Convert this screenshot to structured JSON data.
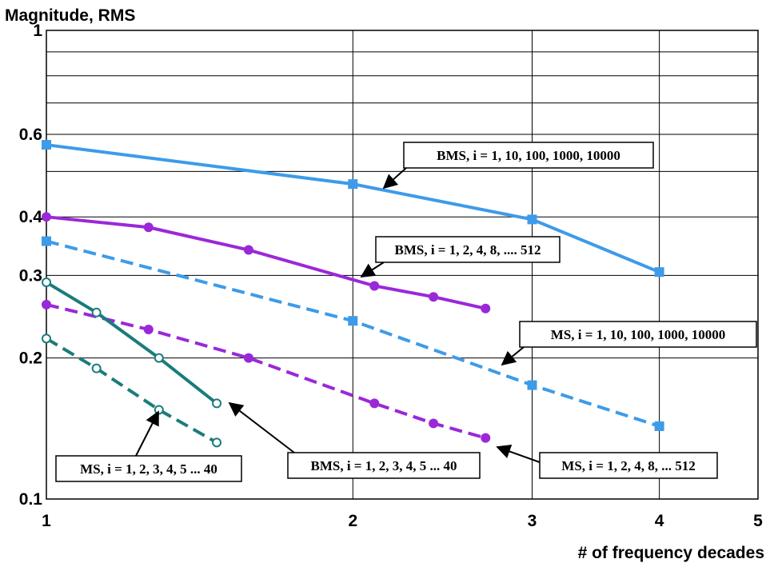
{
  "chart_data": {
    "type": "line",
    "title": "",
    "xlabel": "# of frequency decades",
    "ylabel": "Magnitude, RMS",
    "xscale": "log",
    "yscale": "log",
    "xlim": [
      1,
      5
    ],
    "ylim": [
      0.1,
      1
    ],
    "xticks": [
      1,
      2,
      3,
      4,
      5
    ],
    "xtick_labels": [
      "1",
      "2",
      "3",
      "4",
      "5"
    ],
    "yticks": [
      0.1,
      0.2,
      0.3,
      0.4,
      0.6,
      1
    ],
    "ytick_labels": [
      "0.1",
      "0.2",
      "0.3",
      "0.4",
      "0.6",
      "1"
    ],
    "grid": true,
    "legend": "none",
    "series": [
      {
        "name": "BMS, i = 1, 10, 100, 1000, 10000",
        "color": "#3d9be9",
        "style": "solid",
        "marker": "square-filled",
        "x": [
          1,
          2,
          3,
          4
        ],
        "y": [
          0.57,
          0.47,
          0.395,
          0.305
        ]
      },
      {
        "name": "MS, i = 1, 10, 100, 1000, 10000",
        "color": "#3d9be9",
        "style": "dashed",
        "marker": "square-filled",
        "x": [
          1,
          2,
          3,
          4
        ],
        "y": [
          0.355,
          0.24,
          0.175,
          0.143
        ]
      },
      {
        "name": "BMS, i = 1, 2, 4, 8, .... 512",
        "color": "#9a28d8",
        "style": "solid",
        "marker": "circle-filled",
        "x": [
          1,
          1.26,
          1.58,
          2.1,
          2.4,
          2.7
        ],
        "y": [
          0.4,
          0.38,
          0.34,
          0.285,
          0.27,
          0.255
        ]
      },
      {
        "name": "MS, i = 1, 2, 4, 8, ... 512",
        "color": "#9a28d8",
        "style": "dashed",
        "marker": "circle-filled",
        "x": [
          1,
          1.26,
          1.58,
          2.1,
          2.4,
          2.7
        ],
        "y": [
          0.26,
          0.23,
          0.2,
          0.16,
          0.145,
          0.135
        ]
      },
      {
        "name": "BMS, i = 1, 2, 3, 4, 5 ... 40",
        "color": "#1a7c7c",
        "style": "solid",
        "marker": "circle-open",
        "x": [
          1,
          1.12,
          1.29,
          1.47
        ],
        "y": [
          0.29,
          0.25,
          0.2,
          0.16
        ]
      },
      {
        "name": "MS, i = 1, 2, 3, 4, 5 ... 40",
        "color": "#1a7c7c",
        "style": "dashed",
        "marker": "circle-open",
        "x": [
          1,
          1.12,
          1.29,
          1.47
        ],
        "y": [
          0.22,
          0.19,
          0.155,
          0.132
        ]
      }
    ],
    "annotations": [
      {
        "text": "BMS, i = 1, 10, 100, 1000, 10000"
      },
      {
        "text": "BMS, i = 1, 2, 4, 8, .... 512"
      },
      {
        "text": "MS, i = 1, 10, 100, 1000, 10000"
      },
      {
        "text": "MS, i = 1, 2, 3, 4, 5 ... 40"
      },
      {
        "text": "BMS, i = 1, 2, 3, 4, 5 ... 40"
      },
      {
        "text": "MS, i = 1, 2, 4, 8, ... 512"
      }
    ]
  }
}
